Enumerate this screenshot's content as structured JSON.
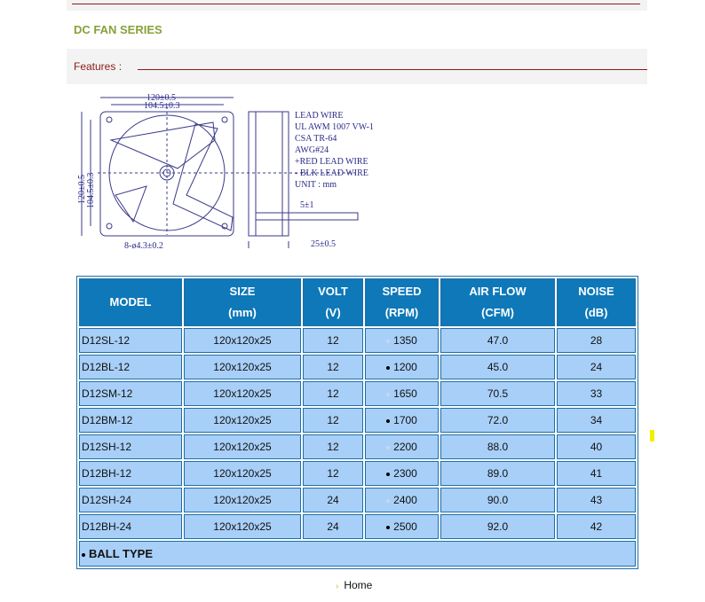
{
  "title": "DC FAN SERIES",
  "features_label": "Features  :",
  "drawing": {
    "dims": [
      "120±0.5",
      "104.5±0.3",
      "120±0.5",
      "104.5±0.3",
      "8-ø4.3±0.2",
      "25±0.5",
      "5±1"
    ],
    "notes": [
      "LEAD  WIRE",
      "UL  AWM 1007 VW-1",
      "CSA TR-64",
      "AWG#24",
      "+RED LEAD WIRE",
      "- BLK LEAD WIRE",
      "UNIT : mm"
    ]
  },
  "table": {
    "headers": [
      [
        "MODEL",
        ""
      ],
      [
        "SIZE",
        "(mm)"
      ],
      [
        "VOLT",
        "(V)"
      ],
      [
        "SPEED",
        "(RPM)"
      ],
      [
        "AIR FLOW",
        "(CFM)"
      ],
      [
        "NOISE",
        "(dB)"
      ]
    ],
    "rows": [
      {
        "model": "D12SL-12",
        "size": "120x120x25",
        "volt": "12",
        "ball": false,
        "speed": "1350",
        "airflow": "47.0",
        "noise": "28"
      },
      {
        "model": "D12BL-12",
        "size": "120x120x25",
        "volt": "12",
        "ball": true,
        "speed": "1200",
        "airflow": "45.0",
        "noise": "24"
      },
      {
        "model": "D12SM-12",
        "size": "120x120x25",
        "volt": "12",
        "ball": false,
        "speed": "1650",
        "airflow": "70.5",
        "noise": "33"
      },
      {
        "model": "D12BM-12",
        "size": "120x120x25",
        "volt": "12",
        "ball": true,
        "speed": "1700",
        "airflow": "72.0",
        "noise": "34"
      },
      {
        "model": "D12SH-12",
        "size": "120x120x25",
        "volt": "12",
        "ball": false,
        "speed": "2200",
        "airflow": "88.0",
        "noise": "40"
      },
      {
        "model": "D12BH-12",
        "size": "120x120x25",
        "volt": "12",
        "ball": true,
        "speed": "2300",
        "airflow": "89.0",
        "noise": "41"
      },
      {
        "model": "D12SH-24",
        "size": "120x120x25",
        "volt": "24",
        "ball": false,
        "speed": "2400",
        "airflow": "90.0",
        "noise": "43"
      },
      {
        "model": "D12BH-24",
        "size": "120x120x25",
        "volt": "24",
        "ball": true,
        "speed": "2500",
        "airflow": "92.0",
        "noise": "42"
      }
    ],
    "legend": "BALL TYPE"
  },
  "footer": {
    "home": "Home"
  },
  "colors": {
    "header_bg": "#0e78b8",
    "cell_bg": "#a8cff8",
    "title": "#86a23a",
    "accent_line": "#8b1a1a"
  }
}
